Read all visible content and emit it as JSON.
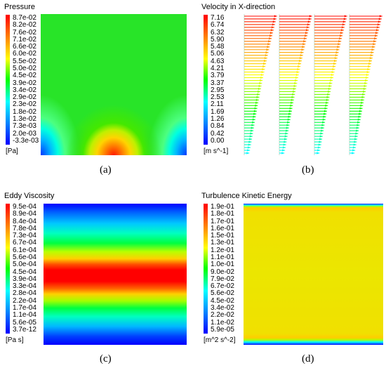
{
  "panels": {
    "a": {
      "title": "Pressure",
      "ticks": [
        "8.7e-02",
        "8.2e-02",
        "7.6e-02",
        "7.1e-02",
        "6.6e-02",
        "6.0e-02",
        "5.5e-02",
        "5.0e-02",
        "4.5e-02",
        "3.9e-02",
        "3.4e-02",
        "2.9e-02",
        "2.3e-02",
        "1.8e-02",
        "1.3e-02",
        "7.3e-03",
        "2.0e-03",
        "-3.3e-03"
      ],
      "unit": "[Pa]",
      "caption": "(a)"
    },
    "b": {
      "title": "Velocity in X-direction",
      "ticks": [
        "7.16",
        "6.74",
        "6.32",
        "5.90",
        "5.48",
        "5.06",
        "4.63",
        "4.21",
        "3.79",
        "3.37",
        "2.95",
        "2.53",
        "2.11",
        "1.69",
        "1.26",
        "0.84",
        "0.42",
        "0.00"
      ],
      "unit": "[m s^-1]",
      "caption": "(b)"
    },
    "c": {
      "title": "Eddy Viscosity",
      "ticks": [
        "9.5e-04",
        "8.9e-04",
        "8.4e-04",
        "7.8e-04",
        "7.3e-04",
        "6.7e-04",
        "6.1e-04",
        "5.6e-04",
        "5.0e-04",
        "4.5e-04",
        "3.9e-04",
        "3.3e-04",
        "2.8e-04",
        "2.2e-04",
        "1.7e-04",
        "1.1e-04",
        "5.6e-05",
        "3.7e-12"
      ],
      "unit": "[Pa s]",
      "caption": "(c)"
    },
    "d": {
      "title": "Turbulence Kinetic Energy",
      "ticks": [
        "1.9e-01",
        "1.8e-01",
        "1.7e-01",
        "1.6e-01",
        "1.5e-01",
        "1.3e-01",
        "1.2e-01",
        "1.1e-01",
        "1.0e-01",
        "9.0e-02",
        "7.9e-02",
        "6.7e-02",
        "5.6e-02",
        "4.5e-02",
        "3.4e-02",
        "2.2e-02",
        "1.1e-02",
        "5.9e-05"
      ],
      "unit": "[m^2 s^-2]",
      "caption": "(d)"
    }
  },
  "colormap": [
    "#ff0000",
    "#ff8000",
    "#ffff00",
    "#00ff00",
    "#00ffff",
    "#0080ff",
    "#0000ff"
  ],
  "velocity_profiles": {
    "count": 4
  }
}
